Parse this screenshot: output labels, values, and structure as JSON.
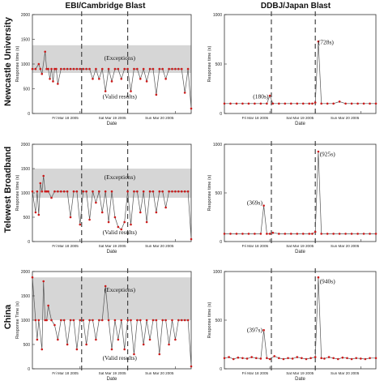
{
  "columns": [
    "EBI/Cambridge Blast",
    "DDBJ/Japan Blast"
  ],
  "rows": [
    "Newcastle University",
    "Telewest Broadband",
    "China"
  ],
  "chart_data": [
    {
      "type": "line",
      "row": 0,
      "col": 0,
      "ylabel": "Response time (s)",
      "xlabel": "Date",
      "ylim": [
        0,
        2000
      ],
      "yticks": [
        "0",
        "500",
        "1000",
        "1500",
        "2000"
      ],
      "xticks": [
        "Fri Mar 18 2005",
        "Sat Mar 19 2005",
        "Sun Mar 20 2005"
      ],
      "xtick_pos": [
        0.3,
        0.6,
        0.9
      ],
      "band": [
        820,
        1380
      ],
      "vlines": [
        0.31,
        0.6
      ],
      "annotations": [
        {
          "text": "(Exceptions)",
          "x": 0.55,
          "y": 1080
        },
        {
          "text": "(Valid results)",
          "x": 0.55,
          "y": 300
        }
      ],
      "baseline": 900,
      "x": [
        0.0,
        0.02,
        0.04,
        0.05,
        0.06,
        0.08,
        0.09,
        0.1,
        0.11,
        0.12,
        0.13,
        0.14,
        0.15,
        0.16,
        0.18,
        0.2,
        0.22,
        0.24,
        0.26,
        0.28,
        0.3,
        0.32,
        0.34,
        0.36,
        0.38,
        0.4,
        0.42,
        0.44,
        0.46,
        0.48,
        0.5,
        0.52,
        0.54,
        0.56,
        0.58,
        0.6,
        0.62,
        0.64,
        0.66,
        0.68,
        0.7,
        0.72,
        0.74,
        0.76,
        0.78,
        0.8,
        0.82,
        0.84,
        0.86,
        0.88,
        0.9,
        0.92,
        0.94,
        0.96,
        0.98,
        1.0
      ],
      "values": [
        900,
        900,
        1000,
        900,
        800,
        1250,
        900,
        900,
        700,
        900,
        650,
        900,
        900,
        600,
        900,
        900,
        900,
        900,
        900,
        900,
        900,
        900,
        900,
        900,
        700,
        900,
        700,
        900,
        450,
        900,
        650,
        900,
        900,
        700,
        900,
        900,
        450,
        900,
        900,
        700,
        900,
        650,
        900,
        900,
        380,
        900,
        900,
        700,
        900,
        900,
        900,
        900,
        900,
        420,
        900,
        100
      ]
    },
    {
      "type": "line",
      "row": 0,
      "col": 1,
      "ylabel": "Response time (s)",
      "xlabel": "Date",
      "ylim": [
        0,
        1000
      ],
      "yticks": [
        "0",
        "500",
        "1000"
      ],
      "xticks": [
        "Fri Mar 18 2005",
        "Sat Mar 19 2005",
        "Sun Mar 20 2005"
      ],
      "xtick_pos": [
        0.3,
        0.6,
        0.9
      ],
      "band": null,
      "vlines": [
        0.31,
        0.6
      ],
      "annotations": [
        {
          "text": "(180s)",
          "x": 0.24,
          "y": 150
        },
        {
          "text": "(728s)",
          "x": 0.67,
          "y": 700
        }
      ],
      "baseline": 100,
      "x": [
        0.0,
        0.04,
        0.08,
        0.12,
        0.16,
        0.2,
        0.24,
        0.28,
        0.3,
        0.32,
        0.36,
        0.4,
        0.44,
        0.48,
        0.52,
        0.56,
        0.58,
        0.6,
        0.62,
        0.64,
        0.68,
        0.72,
        0.76,
        0.8,
        0.84,
        0.88,
        0.92,
        0.96,
        1.0
      ],
      "values": [
        100,
        100,
        100,
        100,
        100,
        100,
        100,
        100,
        180,
        100,
        100,
        100,
        100,
        100,
        100,
        100,
        100,
        110,
        728,
        100,
        100,
        100,
        120,
        100,
        100,
        100,
        100,
        100,
        100
      ]
    },
    {
      "type": "line",
      "row": 1,
      "col": 0,
      "ylabel": "Response time (s)",
      "xlabel": "Date",
      "ylim": [
        0,
        2000
      ],
      "yticks": [
        "0",
        "500",
        "1000",
        "1500",
        "2000"
      ],
      "xticks": [
        "Fri Mar 18 2005",
        "Sat Mar 19 2005",
        "Sun Mar 20 2005"
      ],
      "xtick_pos": [
        0.3,
        0.6,
        0.9
      ],
      "band": [
        900,
        1500
      ],
      "vlines": [
        0.31,
        0.6
      ],
      "annotations": [
        {
          "text": "(Exceptions)",
          "x": 0.55,
          "y": 1280
        },
        {
          "text": "(Valid results)",
          "x": 0.55,
          "y": 150
        }
      ],
      "baseline": 1030,
      "x": [
        0.0,
        0.02,
        0.03,
        0.04,
        0.05,
        0.06,
        0.07,
        0.08,
        0.09,
        0.1,
        0.12,
        0.14,
        0.16,
        0.18,
        0.2,
        0.22,
        0.24,
        0.26,
        0.28,
        0.3,
        0.32,
        0.34,
        0.36,
        0.38,
        0.4,
        0.42,
        0.44,
        0.46,
        0.48,
        0.5,
        0.52,
        0.54,
        0.56,
        0.58,
        0.6,
        0.62,
        0.64,
        0.66,
        0.68,
        0.7,
        0.72,
        0.74,
        0.76,
        0.78,
        0.8,
        0.82,
        0.84,
        0.86,
        0.88,
        0.9,
        0.92,
        0.94,
        0.96,
        0.98,
        1.0
      ],
      "values": [
        1030,
        600,
        1030,
        550,
        1200,
        1030,
        1350,
        1030,
        1030,
        1030,
        900,
        1030,
        1030,
        1030,
        1030,
        1030,
        500,
        1030,
        1030,
        350,
        1030,
        1030,
        450,
        1030,
        800,
        1030,
        600,
        1030,
        400,
        1030,
        500,
        300,
        250,
        400,
        1030,
        350,
        1030,
        1030,
        600,
        1030,
        400,
        1030,
        1030,
        600,
        1030,
        1030,
        700,
        1030,
        1030,
        1030,
        1030,
        1030,
        1030,
        1030,
        50
      ]
    },
    {
      "type": "line",
      "row": 1,
      "col": 1,
      "ylabel": "Response time (s)",
      "xlabel": "Date",
      "ylim": [
        0,
        1000
      ],
      "yticks": [
        "0",
        "500",
        "1000"
      ],
      "xticks": [
        "Fri Mar 18 2005",
        "Sat Mar 19 2005",
        "Sun Mar 20 2005"
      ],
      "xtick_pos": [
        0.3,
        0.6,
        0.9
      ],
      "band": null,
      "vlines": [
        0.31,
        0.6
      ],
      "annotations": [
        {
          "text": "(369s)",
          "x": 0.2,
          "y": 380
        },
        {
          "text": "(925s)",
          "x": 0.68,
          "y": 880
        }
      ],
      "baseline": 80,
      "x": [
        0.0,
        0.04,
        0.08,
        0.12,
        0.16,
        0.2,
        0.24,
        0.26,
        0.28,
        0.3,
        0.32,
        0.36,
        0.4,
        0.44,
        0.48,
        0.52,
        0.56,
        0.58,
        0.6,
        0.62,
        0.64,
        0.68,
        0.72,
        0.76,
        0.8,
        0.84,
        0.88,
        0.92,
        0.96,
        1.0
      ],
      "values": [
        80,
        80,
        80,
        80,
        80,
        80,
        80,
        369,
        80,
        80,
        90,
        80,
        80,
        80,
        80,
        80,
        80,
        80,
        100,
        925,
        80,
        80,
        80,
        80,
        80,
        80,
        80,
        80,
        80,
        80
      ]
    },
    {
      "type": "line",
      "row": 2,
      "col": 0,
      "ylabel": "Response Time (s)",
      "xlabel": "Date",
      "ylim": [
        0,
        2000
      ],
      "yticks": [
        "0",
        "500",
        "1000",
        "1500",
        "2000"
      ],
      "xticks": [
        "Fri Mar 18 2005",
        "Sat Mar 19 2005",
        "Sun Mar 20 2005"
      ],
      "xtick_pos": [
        0.3,
        0.6,
        0.9
      ],
      "band": [
        1000,
        1880
      ],
      "vlines": [
        0.31,
        0.6
      ],
      "annotations": [
        {
          "text": "(Exceptions)",
          "x": 0.55,
          "y": 1580
        },
        {
          "text": "(Valid results)",
          "x": 0.55,
          "y": 180
        }
      ],
      "baseline": 1000,
      "x": [
        0.0,
        0.02,
        0.03,
        0.04,
        0.06,
        0.07,
        0.08,
        0.09,
        0.1,
        0.12,
        0.14,
        0.16,
        0.18,
        0.2,
        0.22,
        0.24,
        0.26,
        0.28,
        0.3,
        0.32,
        0.34,
        0.36,
        0.38,
        0.4,
        0.42,
        0.44,
        0.46,
        0.48,
        0.5,
        0.52,
        0.54,
        0.56,
        0.58,
        0.6,
        0.62,
        0.64,
        0.66,
        0.68,
        0.7,
        0.72,
        0.74,
        0.76,
        0.78,
        0.8,
        0.82,
        0.84,
        0.86,
        0.88,
        0.9,
        0.92,
        0.94,
        0.96,
        0.98,
        1.0
      ],
      "values": [
        1880,
        1000,
        600,
        1000,
        400,
        1800,
        1000,
        1000,
        1300,
        1000,
        900,
        600,
        1000,
        1000,
        500,
        1000,
        1000,
        400,
        1000,
        1000,
        500,
        1000,
        1000,
        600,
        1000,
        1000,
        1700,
        1000,
        400,
        1000,
        600,
        1000,
        400,
        1000,
        1000,
        300,
        1000,
        1000,
        500,
        1000,
        600,
        1000,
        1000,
        300,
        1000,
        1000,
        500,
        1000,
        600,
        1000,
        1000,
        1000,
        1000,
        50
      ]
    },
    {
      "type": "line",
      "row": 2,
      "col": 1,
      "ylabel": "Response time (s)",
      "xlabel": "Date",
      "ylim": [
        0,
        1000
      ],
      "yticks": [
        "0",
        "500",
        "1000"
      ],
      "xticks": [
        "Fri Mar 18 2005",
        "Sat Mar 19 2005",
        "Sun Mar 20 2005"
      ],
      "xtick_pos": [
        0.3,
        0.6,
        0.9
      ],
      "band": null,
      "vlines": [
        0.31,
        0.6
      ],
      "annotations": [
        {
          "text": "(397s)",
          "x": 0.2,
          "y": 380
        },
        {
          "text": "(940s)",
          "x": 0.68,
          "y": 880
        }
      ],
      "baseline": 110,
      "x": [
        0.0,
        0.03,
        0.06,
        0.09,
        0.12,
        0.15,
        0.18,
        0.21,
        0.24,
        0.26,
        0.28,
        0.3,
        0.33,
        0.36,
        0.39,
        0.42,
        0.45,
        0.48,
        0.51,
        0.54,
        0.57,
        0.6,
        0.62,
        0.64,
        0.66,
        0.69,
        0.72,
        0.75,
        0.78,
        0.81,
        0.84,
        0.87,
        0.9,
        0.93,
        0.96,
        1.0
      ],
      "values": [
        110,
        120,
        100,
        115,
        110,
        105,
        120,
        110,
        105,
        397,
        110,
        100,
        130,
        110,
        100,
        110,
        105,
        120,
        110,
        100,
        110,
        120,
        940,
        110,
        105,
        120,
        110,
        100,
        115,
        110,
        100,
        110,
        105,
        100,
        110,
        110
      ]
    }
  ]
}
